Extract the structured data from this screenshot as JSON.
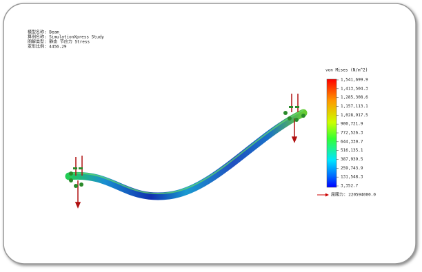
{
  "header": {
    "lines": [
      "模型名称: Beam",
      "算例名称: SimulationXpress Study",
      "图解类型: 静态 节应力 Stress",
      "变形比例: 4456.29"
    ]
  },
  "legend": {
    "title": "von Mises (N/m^2)",
    "labels": [
      "1,541,699.9",
      "1,413,504.3",
      "1,285,308.6",
      "1,157,113.1",
      "1,028,917.5",
      "900,721.9",
      "772,526.3",
      "644,330.7",
      "516,135.1",
      "387,939.5",
      "259,743.9",
      "131,548.3",
      "3,352.7"
    ],
    "yield": "屈服力: 220594000.0"
  }
}
